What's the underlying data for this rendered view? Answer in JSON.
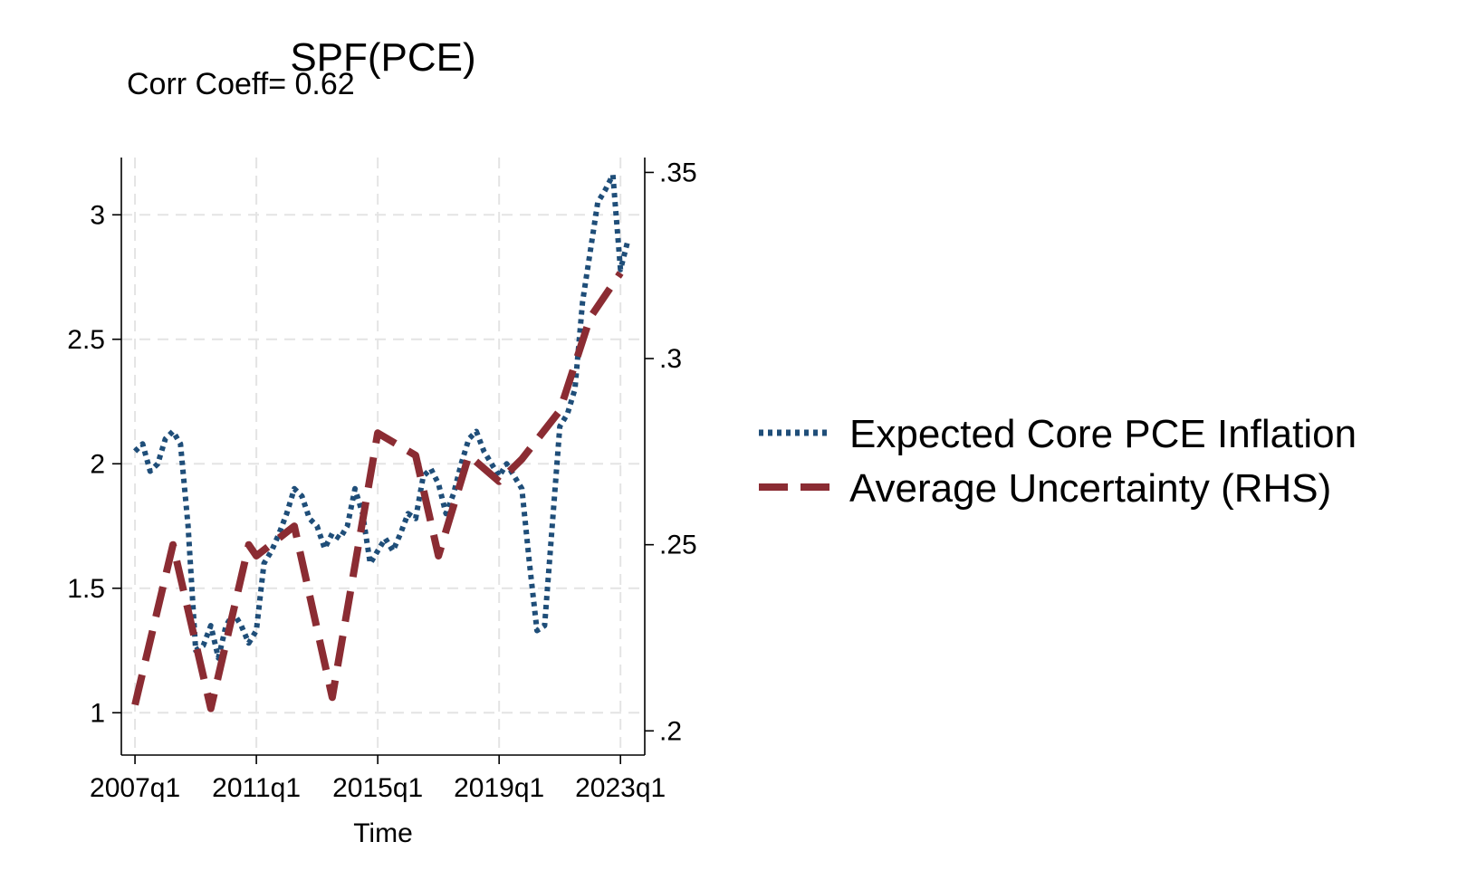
{
  "chart_data": {
    "type": "line",
    "title": "SPF(PCE)",
    "subtitle": "Corr Coeff= 0.62",
    "xlabel": "Time",
    "ylabel": "",
    "ylabel_right": "",
    "grid": true,
    "legend_position": "right",
    "x_ticks": [
      "2007q1",
      "2011q1",
      "2015q1",
      "2019q1",
      "2023q1"
    ],
    "y_ticks_left": [
      "1",
      "1.5",
      "2",
      "2.5",
      "3"
    ],
    "y_ticks_right": [
      ".2",
      ".25",
      ".3",
      ".35"
    ],
    "ylim_left": [
      0.83,
      3.23
    ],
    "ylim_right": [
      0.1935,
      0.354
    ],
    "xlim": [
      2006.55,
      2023.8
    ],
    "series": [
      {
        "name": "Expected Core PCE Inflation",
        "axis": "left",
        "color": "#1f4e79",
        "style": "dotted",
        "x": [
          2007.0,
          2007.25,
          2007.5,
          2007.75,
          2008.0,
          2008.25,
          2008.5,
          2008.75,
          2009.0,
          2009.25,
          2009.5,
          2009.75,
          2010.0,
          2010.25,
          2010.5,
          2010.75,
          2011.0,
          2011.25,
          2011.5,
          2011.75,
          2012.0,
          2012.25,
          2012.5,
          2012.75,
          2013.0,
          2013.25,
          2013.5,
          2013.75,
          2014.0,
          2014.25,
          2014.5,
          2014.75,
          2015.0,
          2015.25,
          2015.5,
          2015.75,
          2016.0,
          2016.25,
          2016.5,
          2016.75,
          2017.0,
          2017.25,
          2017.5,
          2017.75,
          2018.0,
          2018.25,
          2018.5,
          2018.75,
          2019.0,
          2019.25,
          2019.5,
          2019.75,
          2020.0,
          2020.25,
          2020.5,
          2020.75,
          2021.0,
          2021.25,
          2021.5,
          2021.75,
          2022.0,
          2022.25,
          2022.5,
          2022.75,
          2023.0,
          2023.25
        ],
        "values": [
          2.05,
          2.08,
          1.97,
          2.0,
          2.1,
          2.13,
          2.08,
          1.75,
          1.25,
          1.27,
          1.35,
          1.22,
          1.35,
          1.4,
          1.35,
          1.28,
          1.33,
          1.6,
          1.65,
          1.72,
          1.8,
          1.9,
          1.87,
          1.78,
          1.75,
          1.66,
          1.72,
          1.7,
          1.75,
          1.9,
          1.8,
          1.6,
          1.65,
          1.7,
          1.65,
          1.72,
          1.8,
          1.78,
          1.95,
          1.98,
          1.92,
          1.8,
          1.88,
          2.0,
          2.1,
          2.13,
          2.05,
          2.0,
          1.95,
          2.0,
          1.95,
          1.9,
          1.6,
          1.33,
          1.35,
          1.75,
          2.15,
          2.2,
          2.3,
          2.65,
          2.85,
          3.05,
          3.1,
          3.16,
          2.78,
          2.9
        ]
      },
      {
        "name": "Average Uncertainty (RHS)",
        "axis": "right",
        "color": "#8b2c33",
        "style": "dashed",
        "x": [
          2007.0,
          2008.25,
          2009.5,
          2010.75,
          2011.0,
          2012.25,
          2013.5,
          2015.0,
          2016.25,
          2017.0,
          2018.0,
          2019.0,
          2019.75,
          2021.0,
          2022.0,
          2023.0
        ],
        "values": [
          0.207,
          0.25,
          0.206,
          0.25,
          0.247,
          0.255,
          0.209,
          0.28,
          0.274,
          0.247,
          0.274,
          0.267,
          0.273,
          0.286,
          0.311,
          0.323
        ]
      }
    ]
  }
}
